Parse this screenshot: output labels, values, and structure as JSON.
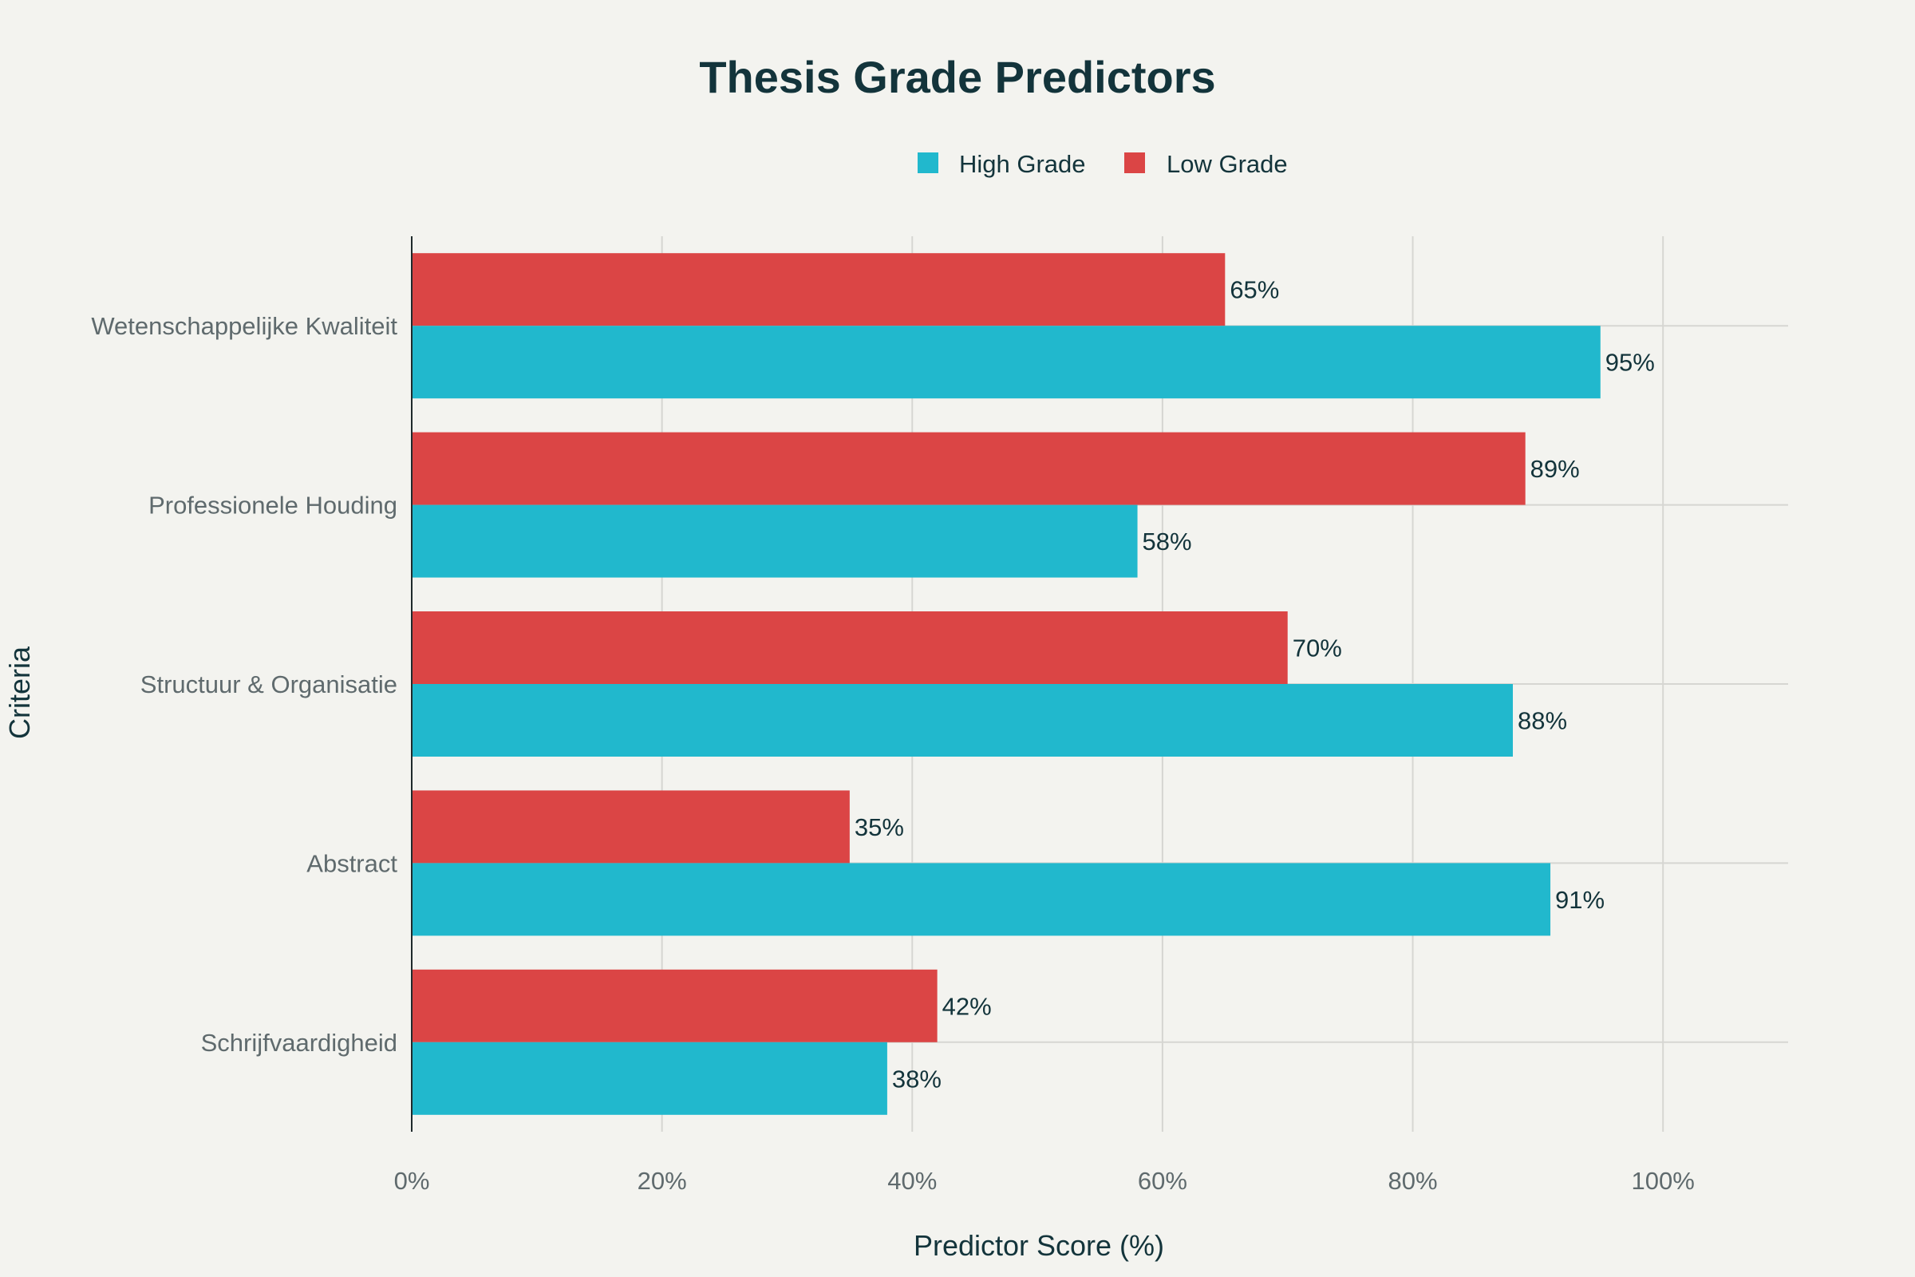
{
  "chart_data": {
    "type": "bar",
    "orientation": "horizontal",
    "title": "Thesis Grade Predictors",
    "xlabel": "Predictor Score (%)",
    "ylabel": "Criteria",
    "xlim": [
      0,
      110
    ],
    "x_ticks": [
      0,
      20,
      40,
      60,
      80,
      100
    ],
    "x_tick_labels": [
      "0%",
      "20%",
      "40%",
      "60%",
      "80%",
      "100%"
    ],
    "grid": true,
    "legend_position": "top-center",
    "categories": [
      "Wetenschappelijke Kwaliteit",
      "Professionele Houding",
      "Structuur & Organisatie",
      "Abstract",
      "Schrijfvaardigheid"
    ],
    "series": [
      {
        "name": "High Grade",
        "color": "#21b8cd",
        "values": [
          95,
          58,
          88,
          91,
          38
        ],
        "labels": [
          "95%",
          "58%",
          "88%",
          "91%",
          "38%"
        ]
      },
      {
        "name": "Low Grade",
        "color": "#db4545",
        "values": [
          65,
          89,
          70,
          35,
          42
        ],
        "labels": [
          "65%",
          "89%",
          "70%",
          "35%",
          "42%"
        ]
      }
    ]
  }
}
